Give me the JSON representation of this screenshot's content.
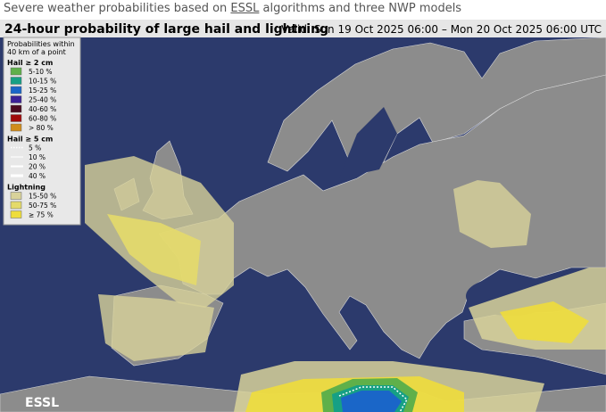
{
  "header": {
    "caption_parts": [
      "Severe weather probabilities based on ",
      "ESSL",
      " algorithms and three NWP models"
    ],
    "title": "24-hour probability of large hail and lightning",
    "valid": "Valid: Sun 19 Oct 2025 06:00 – Mon 20 Oct 2025 06:00 UTC"
  },
  "legend": {
    "intro": [
      "Probabilities within",
      "40 km of a point"
    ],
    "groups": [
      {
        "title": "Hail ≥ 2 cm",
        "kind": "swatch",
        "items": [
          {
            "label": "5-10 %",
            "color": "#5fb04a"
          },
          {
            "label": "10-15 %",
            "color": "#16a085"
          },
          {
            "label": "15-25 %",
            "color": "#1a66c8"
          },
          {
            "label": "25-40 %",
            "color": "#3b2196"
          },
          {
            "label": "40-60 %",
            "color": "#4a0a1e"
          },
          {
            "label": "60-80 %",
            "color": "#a00a0a"
          },
          {
            "label": "> 80 %",
            "color": "#d08c1c"
          }
        ]
      },
      {
        "title": "Hail ≥ 5 cm",
        "kind": "line",
        "items": [
          {
            "label": "5 %",
            "style": "dotted"
          },
          {
            "label": "10 %",
            "style": "thin"
          },
          {
            "label": "20 %",
            "style": "medium"
          },
          {
            "label": "40 %",
            "style": "thick"
          }
        ]
      },
      {
        "title": "Lightning",
        "kind": "swatch",
        "items": [
          {
            "label": "15-50 %",
            "color": "#d8d29a"
          },
          {
            "label": "50-75 %",
            "color": "#e4da6a"
          },
          {
            "label": "≥ 75 %",
            "color": "#eedd3c"
          }
        ]
      }
    ]
  },
  "logo": "ESSL"
}
